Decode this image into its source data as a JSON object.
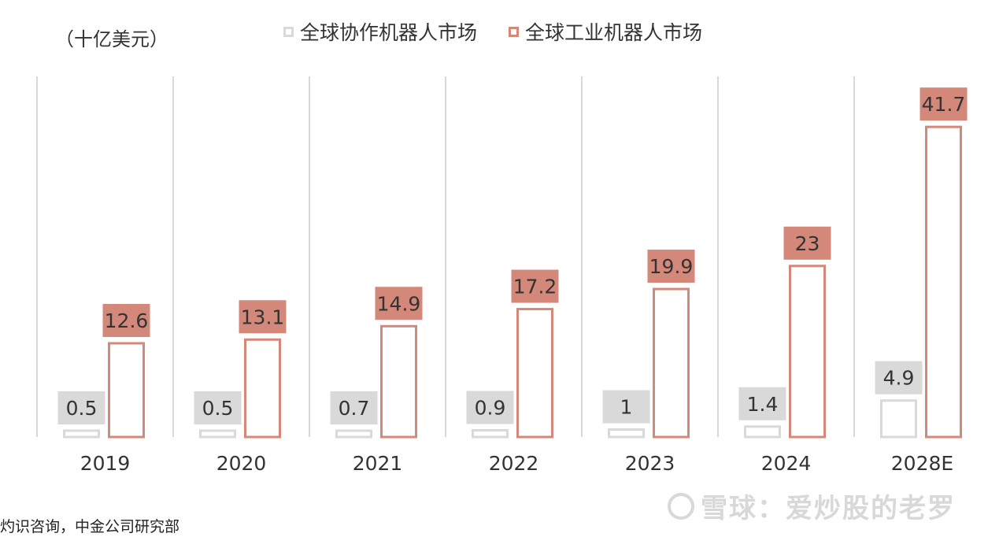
{
  "chart_data": {
    "type": "bar",
    "unit_label": "（十亿美元）",
    "categories": [
      "2019",
      "2020",
      "2021",
      "2022",
      "2023",
      "2024",
      "2028E"
    ],
    "series": [
      {
        "name": "全球协作机器人市场",
        "values": [
          0.5,
          0.5,
          0.7,
          0.9,
          1,
          1.4,
          4.9
        ],
        "color": "#d9d9d9",
        "label_bg": "#d9d9d9"
      },
      {
        "name": "全球工业机器人市场",
        "values": [
          12.6,
          13.1,
          14.9,
          17.2,
          19.9,
          23,
          41.7
        ],
        "color": "#d4887a",
        "label_bg": "#d4887a"
      }
    ],
    "ylim": [
      0,
      45
    ],
    "grid": false,
    "legend_position": "top-center"
  },
  "source_text": "灼识咨询，中金公司研究部",
  "watermark_text": "雪球：爱炒股的老罗"
}
